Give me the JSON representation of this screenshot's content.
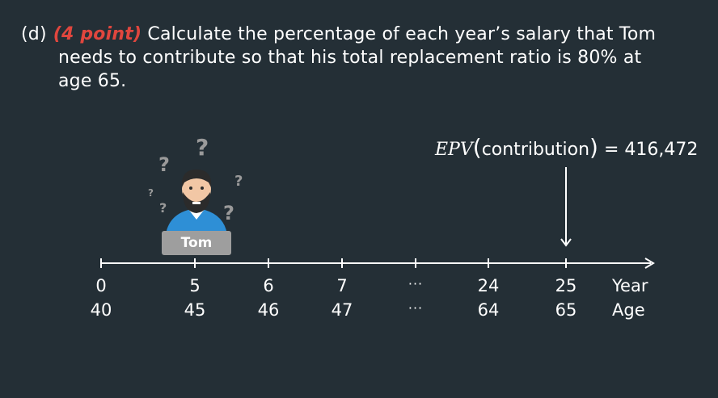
{
  "question": {
    "number": "(d)",
    "points": "(4 point)",
    "line1": "Calculate the percentage of each year’s salary that Tom",
    "line2": "needs to contribute so that his total replacement ratio is 80% at",
    "line3": "age 65."
  },
  "epv": {
    "func": "EPV",
    "arg": "contribution",
    "value": "= 416,472"
  },
  "person": {
    "name": "Tom",
    "marks": [
      "?",
      "?",
      "?",
      "?",
      "?",
      "?"
    ]
  },
  "timeline": {
    "years": [
      "0",
      "5",
      "6",
      "7",
      "24",
      "25"
    ],
    "ages": [
      "40",
      "45",
      "46",
      "47",
      "64",
      "65"
    ],
    "ellipsis": "···",
    "year_label": "Year",
    "age_label": "Age"
  }
}
